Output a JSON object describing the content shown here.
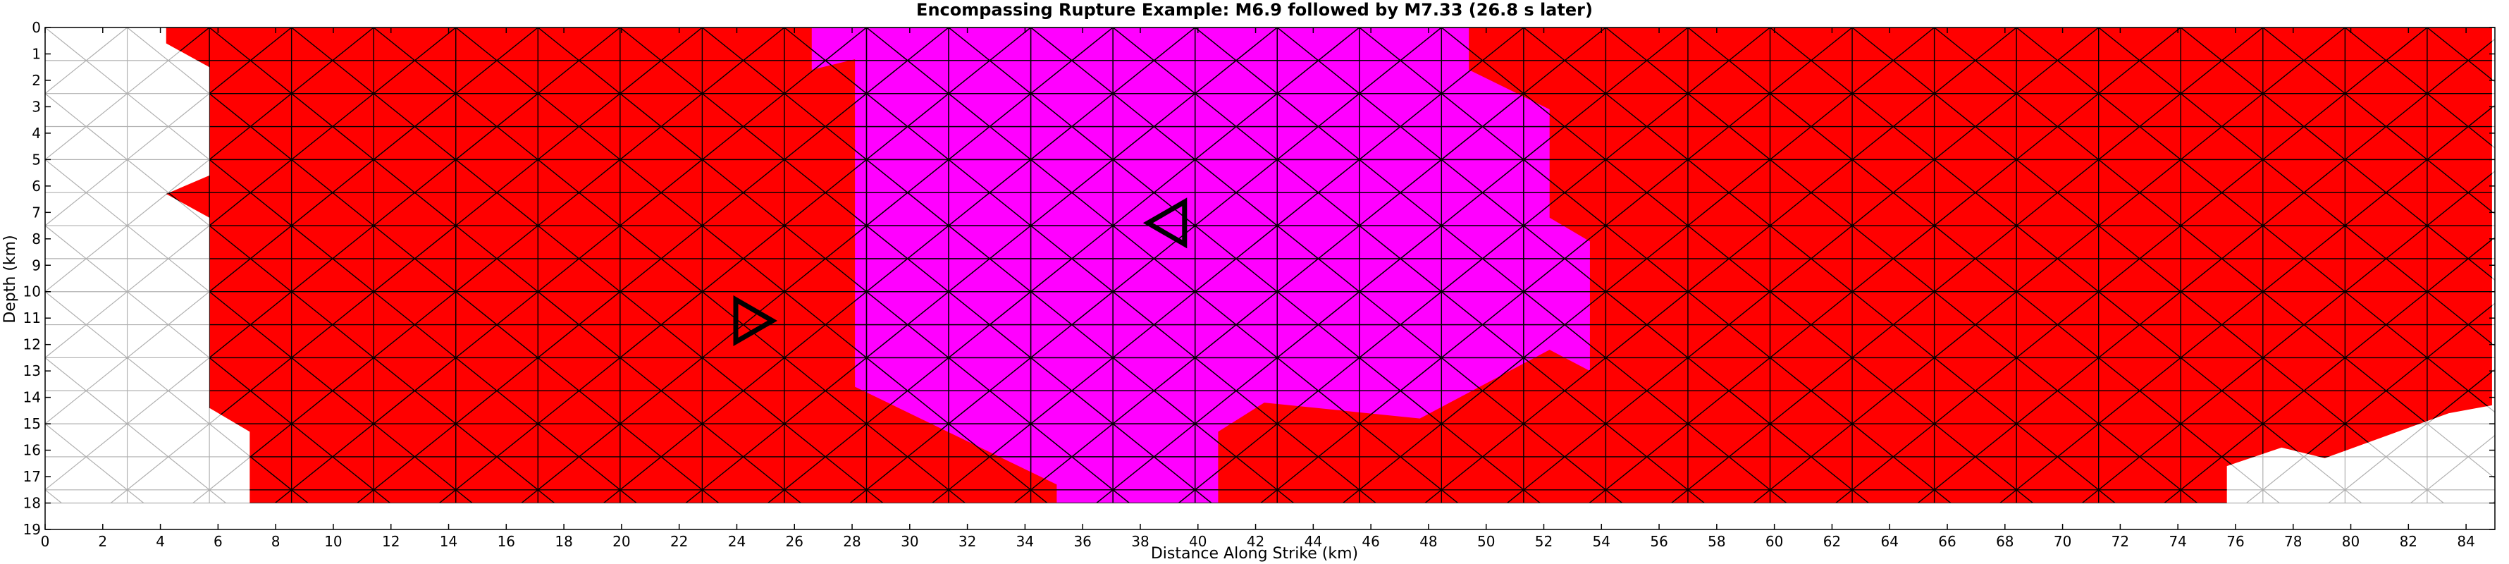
{
  "chart_data": {
    "type": "triangular mesh fault rupture map",
    "title": "Encompassing Rupture Example: M6.9 followed by M7.33 (26.8 s later)",
    "xlabel": "Distance Along Strike (km)",
    "ylabel": "Depth (km)",
    "xlim": [
      0,
      85
    ],
    "ylim": [
      19,
      0
    ],
    "x_ticks": [
      "0",
      "2",
      "4",
      "6",
      "8",
      "10",
      "12",
      "14",
      "16",
      "18",
      "20",
      "22",
      "24",
      "26",
      "28",
      "30",
      "32",
      "34",
      "36",
      "38",
      "40",
      "42",
      "44",
      "46",
      "48",
      "50",
      "52",
      "54",
      "56",
      "58",
      "60",
      "62",
      "64",
      "66",
      "68",
      "70",
      "72",
      "74",
      "76",
      "78",
      "80",
      "82",
      "84"
    ],
    "y_ticks": [
      "0",
      "1",
      "2",
      "3",
      "4",
      "5",
      "6",
      "7",
      "8",
      "9",
      "10",
      "11",
      "12",
      "13",
      "14",
      "15",
      "16",
      "17",
      "18",
      "19"
    ],
    "mesh": {
      "element_width_km": 2.85,
      "element_height_km": 1.25
    },
    "colors": {
      "background": "#ffffff",
      "unruptured_edge": "#b0b0b0",
      "ruptured_edge": "#000000",
      "first_event": "#ff00ff",
      "second_event": "#ff0000"
    },
    "regions": [
      {
        "event": "M7.33",
        "color": "#ff0000",
        "polygon_km": [
          [
            4.2,
            0
          ],
          [
            84.9,
            0
          ],
          [
            84.9,
            14.3
          ],
          [
            83.4,
            14.6
          ],
          [
            79.1,
            16.3
          ],
          [
            77.6,
            15.9
          ],
          [
            75.7,
            16.6
          ],
          [
            75.7,
            18
          ],
          [
            7.1,
            18
          ],
          [
            7.1,
            15.3
          ],
          [
            5.7,
            14.4
          ],
          [
            5.7,
            7.2
          ],
          [
            4.2,
            6.3
          ],
          [
            5.7,
            5.6
          ],
          [
            5.7,
            1.5
          ],
          [
            4.2,
            0.6
          ]
        ]
      },
      {
        "event": "M6.9",
        "color": "#ff00ff",
        "polygon_km": [
          [
            26.6,
            0
          ],
          [
            49.4,
            0
          ],
          [
            49.4,
            1.6
          ],
          [
            52.2,
            3.1
          ],
          [
            52.2,
            7.2
          ],
          [
            53.6,
            8.1
          ],
          [
            53.6,
            13
          ],
          [
            52.2,
            12.2
          ],
          [
            47.7,
            14.8
          ],
          [
            42.3,
            14.2
          ],
          [
            40.7,
            15.3
          ],
          [
            40.7,
            18
          ],
          [
            35.1,
            18
          ],
          [
            35.1,
            17.3
          ],
          [
            28.1,
            13.6
          ],
          [
            28.1,
            1.2
          ],
          [
            26.6,
            1.6
          ]
        ]
      }
    ],
    "markers": [
      {
        "name": "M6.9 hypocenter",
        "shape": "left-pointing triangle",
        "x": 38.9,
        "y": 7.4
      },
      {
        "name": "M7.33 hypocenter",
        "shape": "right-pointing triangle",
        "x": 24.6,
        "y": 11.1
      }
    ]
  }
}
